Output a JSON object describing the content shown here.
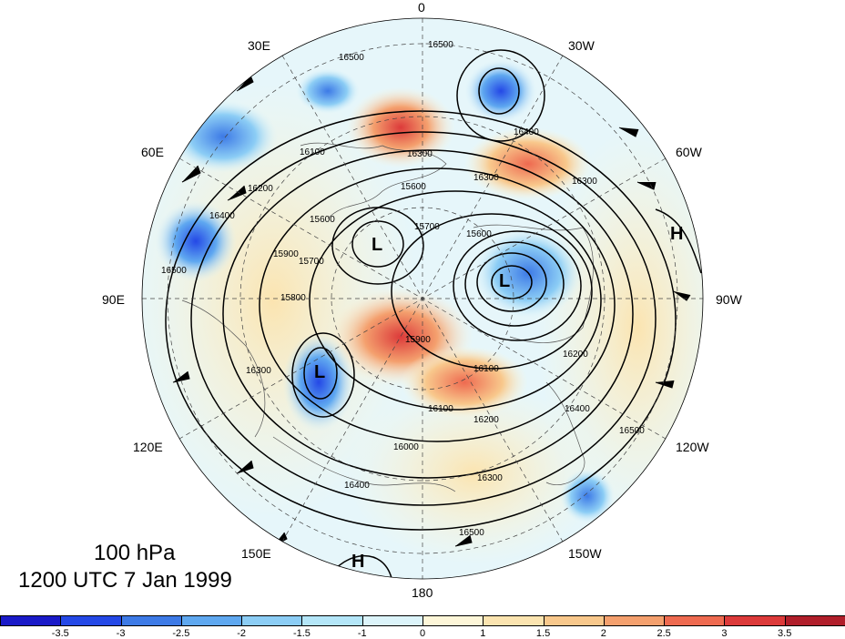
{
  "map": {
    "longitude_labels": [
      "0",
      "30W",
      "60W",
      "90W",
      "120W",
      "150W",
      "180",
      "150E",
      "120E",
      "90E",
      "60E",
      "30E"
    ],
    "systems": [
      {
        "id": "low-main",
        "type": "L"
      },
      {
        "id": "low-north",
        "type": "L"
      },
      {
        "id": "low-west",
        "type": "L"
      },
      {
        "id": "high-east",
        "type": "H"
      },
      {
        "id": "high-south",
        "type": "H"
      }
    ],
    "contour_labels": [
      "16500",
      "16500",
      "16400",
      "16300",
      "16300",
      "16100",
      "16200",
      "15700",
      "15600",
      "15600",
      "15900",
      "15800",
      "15600",
      "15700",
      "16300",
      "16400",
      "16500",
      "15900",
      "16100",
      "16100",
      "16200",
      "16200",
      "16400",
      "16500",
      "16000",
      "16300",
      "16400",
      "16500",
      "16300"
    ]
  },
  "caption": {
    "level": "100 hPa",
    "time": "1200 UTC 7 Jan 1999"
  },
  "colorbar": {
    "colors": [
      "#1a1ac8",
      "#2448e6",
      "#3d7ae6",
      "#5fa8f0",
      "#8ccdf5",
      "#b4e6f8",
      "#dcf4fa",
      "#fdf6d8",
      "#fbe4b0",
      "#f8c88c",
      "#f4a06e",
      "#ee6a50",
      "#dc3a3a",
      "#b01e2a"
    ],
    "ticks": [
      "-3.5",
      "-3",
      "-2.5",
      "-2",
      "-1.5",
      "-1",
      "0",
      "1",
      "1.5",
      "2",
      "2.5",
      "3",
      "3.5"
    ]
  }
}
